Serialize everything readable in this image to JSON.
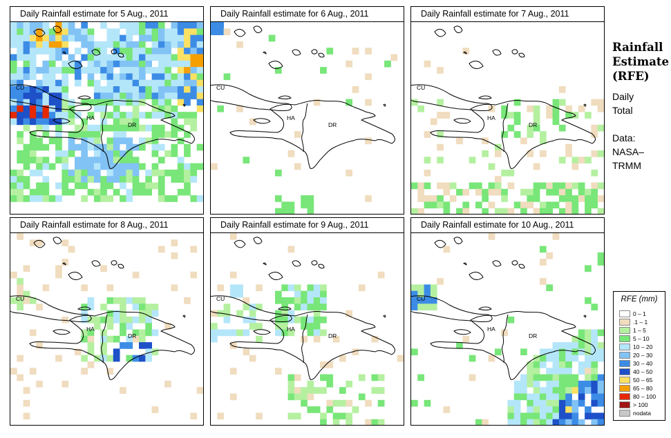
{
  "header": {
    "title": "Rainfall Estimate (RFE)",
    "title_lines": [
      "Rainfall",
      "Estimate",
      "(RFE)"
    ],
    "period_lines": [
      "Daily",
      "Total"
    ],
    "source_lines": [
      "Data:",
      "NASA–",
      "TRMM"
    ]
  },
  "map_labels": {
    "cuba": "CU",
    "haiti": "HA",
    "dominican_republic": "DR"
  },
  "panels": [
    {
      "title": "Daily Rainfall estimate for  5 Aug., 2011",
      "date": "2011-08-05",
      "intensity": "heavy-widespread"
    },
    {
      "title": "Daily Rainfall estimate for  6 Aug., 2011",
      "date": "2011-08-06",
      "intensity": "very-light"
    },
    {
      "title": "Daily Rainfall estimate for  7 Aug., 2011",
      "date": "2011-08-07",
      "intensity": "light-scattered"
    },
    {
      "title": "Daily Rainfall estimate for  8 Aug., 2011",
      "date": "2011-08-08",
      "intensity": "moderate-central"
    },
    {
      "title": "Daily Rainfall estimate for  9 Aug., 2011",
      "date": "2011-08-09",
      "intensity": "light-moderate"
    },
    {
      "title": "Daily Rainfall estimate for  10 Aug., 2011",
      "date": "2011-08-10",
      "intensity": "heavy-southeast"
    }
  ],
  "legend": {
    "title": "RFE (mm)",
    "items": [
      {
        "label": "0 – 1",
        "color": "#ffffff"
      },
      {
        "label": ".1 – 1",
        "color": "#f0dcbe"
      },
      {
        "label": "1 – 5",
        "color": "#b4f0a0"
      },
      {
        "label": "5 – 10",
        "color": "#78e678"
      },
      {
        "label": "10 – 20",
        "color": "#b4e6fa"
      },
      {
        "label": "20 – 30",
        "color": "#82c3f5"
      },
      {
        "label": "30 – 40",
        "color": "#3c8ce6"
      },
      {
        "label": "40 – 50",
        "color": "#1e50c8"
      },
      {
        "label": "50 – 65",
        "color": "#fae164"
      },
      {
        "label": "65 – 80",
        "color": "#f5a000"
      },
      {
        "label": "80 – 100",
        "color": "#e62800"
      },
      {
        "label": "> 100",
        "color": "#a01414"
      },
      {
        "label": "nodata",
        "color": "#c8c8c8"
      }
    ]
  }
}
